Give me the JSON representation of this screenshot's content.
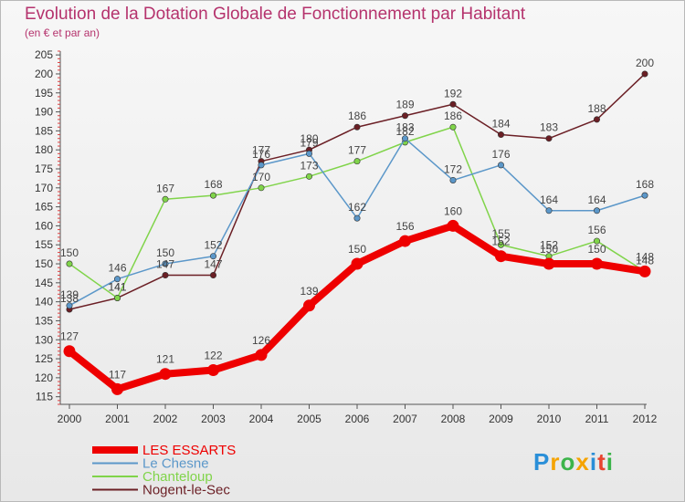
{
  "header": {
    "title": "Evolution de la Dotation Globale de Fonctionnement par Habitant",
    "subtitle": "(en € et par an)"
  },
  "chart_data": {
    "type": "line",
    "title": "Evolution de la Dotation Globale de Fonctionnement par Habitant",
    "subtitle": "(en € et par an)",
    "xlabel": "",
    "ylabel": "",
    "x": [
      "2000",
      "2001",
      "2002",
      "2003",
      "2004",
      "2005",
      "2006",
      "2007",
      "2008",
      "2009",
      "2010",
      "2011",
      "2012"
    ],
    "yticks": [
      115,
      120,
      125,
      130,
      135,
      140,
      145,
      150,
      155,
      160,
      165,
      170,
      175,
      180,
      185,
      190,
      195,
      200,
      205
    ],
    "ylim": [
      113,
      206
    ],
    "grid": false,
    "legend": "bottom-left",
    "series": [
      {
        "name": "LES ESSARTS",
        "color": "#ee0000",
        "values": [
          127,
          117,
          121,
          122,
          126,
          139,
          150,
          156,
          160,
          152,
          150,
          150,
          148
        ]
      },
      {
        "name": "Le Chesne",
        "color": "#5b97c9",
        "values": [
          139,
          146,
          150,
          152,
          176,
          179,
          162,
          183,
          172,
          176,
          164,
          164,
          168
        ]
      },
      {
        "name": "Chanteloup",
        "color": "#80d44a",
        "values": [
          150,
          141,
          167,
          168,
          170,
          173,
          177,
          182,
          186,
          155,
          152,
          156,
          148
        ]
      },
      {
        "name": "Nogent-le-Sec",
        "color": "#6b1f25",
        "values": [
          138,
          141,
          147,
          147,
          177,
          180,
          186,
          189,
          192,
          184,
          183,
          188,
          200
        ]
      }
    ]
  },
  "logo": {
    "letters": [
      "P",
      "r",
      "o",
      "x",
      "i",
      "t",
      "i"
    ],
    "colors": [
      "#2a8fd8",
      "#f5a300",
      "#3cb44a",
      "#f5a300",
      "#2a8fd8",
      "#e8432e",
      "#3cb44a"
    ]
  }
}
